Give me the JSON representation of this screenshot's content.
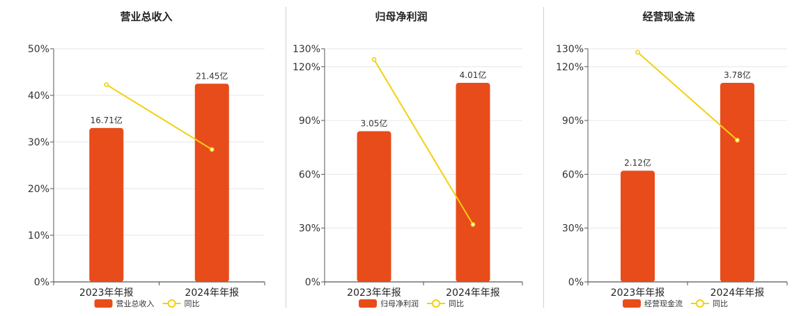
{
  "chart_data": [
    {
      "type": "bar",
      "title": "营业总收入",
      "categories": [
        "2023年年报",
        "2024年年报"
      ],
      "series": [
        {
          "name": "营业总收入",
          "type": "bar",
          "value_labels": [
            "16.71亿",
            "21.45亿"
          ],
          "axis_values": [
            33.0,
            42.5
          ]
        },
        {
          "name": "同比",
          "type": "line",
          "axis_values": [
            42.3,
            28.4
          ]
        }
      ],
      "yticks": [
        "0%",
        "10%",
        "20%",
        "30%",
        "40%",
        "50%"
      ],
      "ytick_values": [
        0,
        10,
        20,
        30,
        40,
        50
      ],
      "ylim": [
        0,
        50
      ],
      "bar_color": "#e84c1a",
      "line_color": "#f2d012"
    },
    {
      "type": "bar",
      "title": "归母净利润",
      "categories": [
        "2023年年报",
        "2024年年报"
      ],
      "series": [
        {
          "name": "归母净利润",
          "type": "bar",
          "value_labels": [
            "3.05亿",
            "4.01亿"
          ],
          "axis_values": [
            84,
            111
          ]
        },
        {
          "name": "同比",
          "type": "line",
          "axis_values": [
            124,
            32
          ]
        }
      ],
      "yticks": [
        "0%",
        "30%",
        "60%",
        "90%",
        "120%",
        "130%"
      ],
      "ytick_values": [
        0,
        30,
        60,
        90,
        120,
        130
      ],
      "ylim": [
        0,
        130
      ],
      "bar_color": "#e84c1a",
      "line_color": "#f2d012"
    },
    {
      "type": "bar",
      "title": "经营现金流",
      "categories": [
        "2023年年报",
        "2024年年报"
      ],
      "series": [
        {
          "name": "经营现金流",
          "type": "bar",
          "value_labels": [
            "2.12亿",
            "3.78亿"
          ],
          "axis_values": [
            62,
            111
          ]
        },
        {
          "name": "同比",
          "type": "line",
          "axis_values": [
            128,
            79
          ]
        }
      ],
      "yticks": [
        "0%",
        "30%",
        "60%",
        "90%",
        "120%",
        "130%"
      ],
      "ytick_values": [
        0,
        30,
        60,
        90,
        120,
        130
      ],
      "ylim": [
        0,
        130
      ],
      "bar_color": "#e84c1a",
      "line_color": "#f2d012"
    }
  ]
}
